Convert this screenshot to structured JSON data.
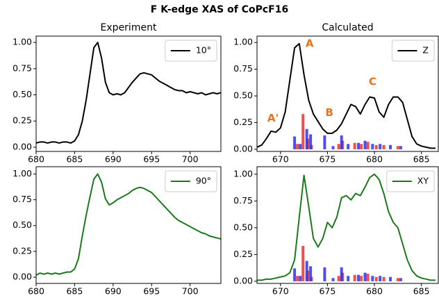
{
  "title": "F K-edge XAS of CoPcF16",
  "chart_data": [
    {
      "type": "line",
      "title": "Experiment",
      "xlim": [
        680,
        704
      ],
      "ylim": [
        -0.04,
        1.06
      ],
      "xticks": [
        680,
        685,
        690,
        695,
        700
      ],
      "yticks": [
        {
          "value": 0,
          "label": "0.00"
        },
        {
          "value": 0.25,
          "label": "0.25"
        },
        {
          "value": 0.5,
          "label": "0.50"
        },
        {
          "value": 0.75,
          "label": "0.75"
        },
        {
          "value": 1,
          "label": "1.00"
        }
      ],
      "legend": "upper right",
      "series": [
        {
          "name": "10°",
          "color": "#000000",
          "x": [
            680,
            680.5,
            681,
            681.5,
            682,
            682.5,
            683,
            683.5,
            684,
            684.5,
            685,
            685.5,
            686,
            686.5,
            687,
            687.5,
            688,
            688.5,
            689,
            689.5,
            690,
            690.5,
            691,
            691.5,
            692,
            692.5,
            693,
            693.5,
            694,
            694.5,
            695,
            695.5,
            696,
            696.5,
            697,
            697.5,
            698,
            698.5,
            699,
            699.5,
            700,
            700.5,
            701,
            701.5,
            702,
            702.5,
            703,
            703.5,
            704
          ],
          "values": [
            0.04,
            0.05,
            0.05,
            0.04,
            0.05,
            0.05,
            0.04,
            0.05,
            0.05,
            0.04,
            0.06,
            0.12,
            0.25,
            0.45,
            0.7,
            0.95,
            1.0,
            0.85,
            0.62,
            0.52,
            0.5,
            0.51,
            0.5,
            0.52,
            0.57,
            0.62,
            0.66,
            0.7,
            0.71,
            0.7,
            0.69,
            0.66,
            0.63,
            0.61,
            0.59,
            0.57,
            0.55,
            0.54,
            0.54,
            0.52,
            0.53,
            0.52,
            0.51,
            0.52,
            0.5,
            0.51,
            0.52,
            0.51,
            0.52
          ]
        }
      ]
    },
    {
      "type": "line",
      "title": "Calculated",
      "xlim": [
        667.5,
        686.8
      ],
      "ylim": [
        -0.02,
        1.06
      ],
      "xticks": [
        670,
        675,
        680,
        685
      ],
      "yticks": [
        {
          "value": 0,
          "label": "0.00"
        },
        {
          "value": 0.25,
          "label": "0.25"
        },
        {
          "value": 0.5,
          "label": "0.50"
        },
        {
          "value": 0.75,
          "label": "0.75"
        },
        {
          "value": 1,
          "label": "1.00"
        }
      ],
      "legend": "upper right",
      "annotations": [
        {
          "text": "A'",
          "x": 669.2,
          "y": 0.29,
          "color": "#e8731a"
        },
        {
          "text": "A",
          "x": 673.1,
          "y": 0.99,
          "color": "#e8731a"
        },
        {
          "text": "B",
          "x": 675.2,
          "y": 0.34,
          "color": "#e8731a"
        },
        {
          "text": "C",
          "x": 679.8,
          "y": 0.63,
          "color": "#e8731a"
        }
      ],
      "series": [
        {
          "name": "Z",
          "color": "#000000",
          "x": [
            667.5,
            668,
            668.5,
            669,
            669.5,
            670,
            670.5,
            671,
            671.5,
            672,
            672.5,
            673,
            673.5,
            674,
            674.5,
            675,
            675.5,
            676,
            676.5,
            677,
            677.5,
            678,
            678.5,
            679,
            679.5,
            680,
            680.5,
            681,
            681.5,
            682,
            682.5,
            683,
            683.5,
            684,
            684.5,
            685,
            685.5,
            686,
            686.5
          ],
          "values": [
            0.02,
            0.04,
            0.1,
            0.17,
            0.16,
            0.2,
            0.35,
            0.65,
            0.95,
            0.99,
            0.7,
            0.46,
            0.33,
            0.26,
            0.19,
            0.15,
            0.15,
            0.18,
            0.24,
            0.33,
            0.42,
            0.4,
            0.33,
            0.42,
            0.49,
            0.48,
            0.35,
            0.3,
            0.42,
            0.49,
            0.49,
            0.44,
            0.28,
            0.12,
            0.05,
            0.03,
            0.02,
            0.01,
            0.01
          ]
        },
        {
          "type": "bar",
          "color": "#e8302f",
          "x": [
            671.8,
            672.4,
            672.9,
            673.3,
            676.2,
            676.6,
            677.9,
            678.6,
            679.3,
            680.2,
            681.0,
            682.5
          ],
          "values": [
            0.05,
            0.33,
            0.1,
            0.04,
            0.05,
            0.08,
            0.06,
            0.05,
            0.07,
            0.04,
            0.04,
            0.03
          ]
        },
        {
          "type": "bar",
          "color": "#3030e8",
          "x": [
            671.5,
            672.1,
            672.8,
            673.2,
            674.7,
            675.6,
            676.5,
            677.2,
            678.3,
            679.0,
            679.8,
            680.6,
            681.7,
            682.8
          ],
          "values": [
            0.12,
            0.05,
            0.19,
            0.14,
            0.13,
            0.03,
            0.13,
            0.05,
            0.06,
            0.08,
            0.05,
            0.05,
            0.04,
            0.03
          ]
        }
      ]
    },
    {
      "type": "line",
      "xlim": [
        680,
        704
      ],
      "ylim": [
        -0.06,
        1.07
      ],
      "xticks": [
        680,
        685,
        690,
        695,
        700
      ],
      "yticks": [
        {
          "value": 0,
          "label": "0.00"
        },
        {
          "value": 0.25,
          "label": "0.25"
        },
        {
          "value": 0.5,
          "label": "0.50"
        },
        {
          "value": 0.75,
          "label": "0.75"
        },
        {
          "value": 1,
          "label": "1.00"
        }
      ],
      "legend": "upper right",
      "series": [
        {
          "name": "90°",
          "color": "#1a7a1a",
          "x": [
            680,
            680.5,
            681,
            681.5,
            682,
            682.5,
            683,
            683.5,
            684,
            684.5,
            685,
            685.5,
            686,
            686.5,
            687,
            687.5,
            688,
            688.5,
            689,
            689.5,
            690,
            690.5,
            691,
            691.5,
            692,
            692.5,
            693,
            693.5,
            694,
            694.5,
            695,
            695.5,
            696,
            696.5,
            697,
            697.5,
            698,
            698.5,
            699,
            699.5,
            700,
            700.5,
            701,
            701.5,
            702,
            702.5,
            703,
            703.5,
            704
          ],
          "values": [
            0.02,
            0.04,
            0.03,
            0.04,
            0.03,
            0.04,
            0.03,
            0.04,
            0.05,
            0.05,
            0.08,
            0.18,
            0.4,
            0.6,
            0.78,
            0.95,
            1.0,
            0.92,
            0.76,
            0.7,
            0.72,
            0.75,
            0.77,
            0.79,
            0.81,
            0.84,
            0.86,
            0.87,
            0.86,
            0.84,
            0.82,
            0.78,
            0.74,
            0.7,
            0.66,
            0.62,
            0.58,
            0.55,
            0.53,
            0.51,
            0.49,
            0.47,
            0.45,
            0.43,
            0.42,
            0.4,
            0.39,
            0.38,
            0.37
          ]
        }
      ]
    },
    {
      "type": "line",
      "xlim": [
        667.5,
        686.8
      ],
      "ylim": [
        -0.02,
        1.07
      ],
      "xticks": [
        670,
        675,
        680,
        685
      ],
      "yticks": [
        {
          "value": 0,
          "label": "0.00"
        },
        {
          "value": 0.25,
          "label": "0.25"
        },
        {
          "value": 0.5,
          "label": "0.50"
        },
        {
          "value": 0.75,
          "label": "0.75"
        },
        {
          "value": 1,
          "label": "1.00"
        }
      ],
      "legend": "upper right",
      "series": [
        {
          "name": "XY",
          "color": "#1a7a1a",
          "x": [
            667.5,
            668,
            668.5,
            669,
            669.5,
            670,
            670.5,
            671,
            671.5,
            672,
            672.5,
            673,
            673.5,
            674,
            674.5,
            675,
            675.5,
            676,
            676.5,
            677,
            677.5,
            678,
            678.5,
            679,
            679.5,
            680,
            680.5,
            681,
            681.5,
            682,
            682.5,
            683,
            683.5,
            684,
            684.5,
            685,
            685.5,
            686,
            686.5
          ],
          "values": [
            0.01,
            0.01,
            0.02,
            0.02,
            0.03,
            0.04,
            0.05,
            0.08,
            0.2,
            0.6,
            0.99,
            0.7,
            0.4,
            0.32,
            0.4,
            0.55,
            0.5,
            0.6,
            0.78,
            0.8,
            0.76,
            0.82,
            0.8,
            0.88,
            0.97,
            1.0,
            0.95,
            0.82,
            0.65,
            0.55,
            0.5,
            0.35,
            0.2,
            0.1,
            0.05,
            0.03,
            0.02,
            0.01,
            0.01
          ]
        },
        {
          "type": "bar",
          "color": "#e8302f",
          "x": [
            671.8,
            672.4,
            672.9,
            673.3,
            676.2,
            676.6,
            677.9,
            678.6,
            679.3,
            680.2,
            681.0,
            682.5
          ],
          "values": [
            0.05,
            0.33,
            0.1,
            0.04,
            0.05,
            0.08,
            0.06,
            0.05,
            0.07,
            0.04,
            0.04,
            0.03
          ]
        },
        {
          "type": "bar",
          "color": "#3030e8",
          "x": [
            671.5,
            672.1,
            672.8,
            673.2,
            674.7,
            675.6,
            676.5,
            677.2,
            678.3,
            679.0,
            679.8,
            680.6,
            681.7,
            682.8
          ],
          "values": [
            0.12,
            0.05,
            0.19,
            0.14,
            0.13,
            0.03,
            0.13,
            0.05,
            0.06,
            0.08,
            0.05,
            0.05,
            0.04,
            0.03
          ]
        }
      ]
    }
  ]
}
